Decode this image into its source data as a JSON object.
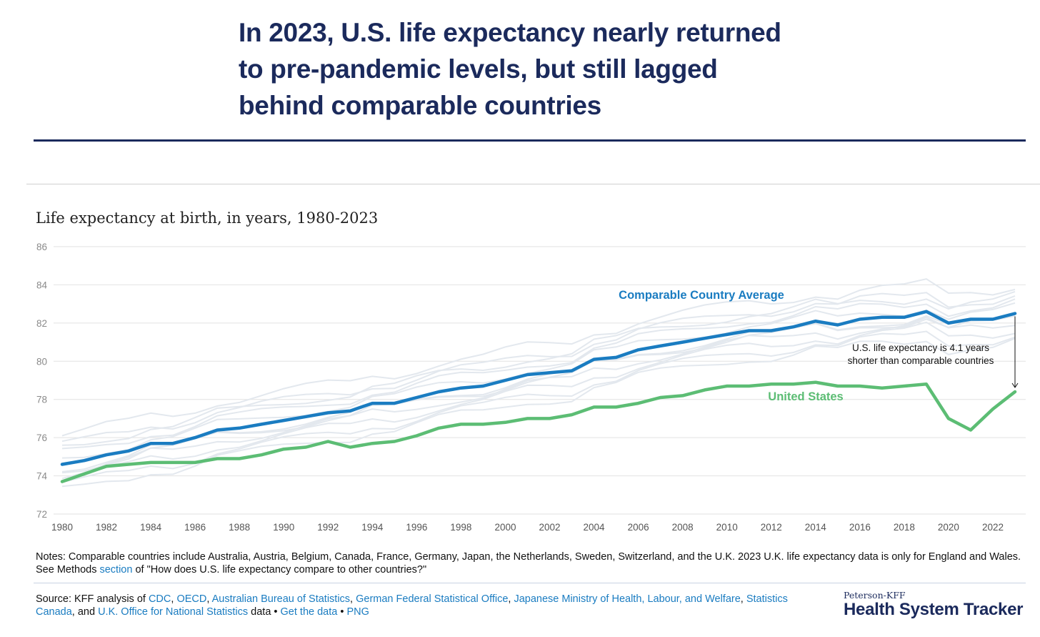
{
  "title": "In 2023, U.S. life expectancy nearly returned to pre-pandemic levels, but still lagged behind comparable countries",
  "title_lines": [
    "In 2023, U.S. life expectancy nearly returned",
    "to pre-pandemic levels, but still lagged",
    "behind comparable countries"
  ],
  "chart_data": {
    "type": "line",
    "title": "Life expectancy at birth, in years, 1980-2023",
    "xlabel": "",
    "ylabel": "",
    "ylim": [
      72,
      86
    ],
    "xlim": [
      1980,
      2023
    ],
    "yticks": [
      72,
      74,
      76,
      78,
      80,
      82,
      84,
      86
    ],
    "xticks": [
      1980,
      1982,
      1984,
      1986,
      1988,
      1990,
      1992,
      1994,
      1996,
      1998,
      2000,
      2002,
      2004,
      2006,
      2008,
      2010,
      2012,
      2014,
      2016,
      2018,
      2020,
      2022
    ],
    "grid": true,
    "series": [
      {
        "name": "Comparable Country Average",
        "color": "#1a7cc1",
        "values": [
          74.6,
          74.8,
          75.1,
          75.3,
          75.7,
          75.7,
          76.0,
          76.4,
          76.5,
          76.7,
          76.9,
          77.1,
          77.3,
          77.4,
          77.8,
          77.8,
          78.1,
          78.4,
          78.6,
          78.7,
          79.0,
          79.3,
          79.4,
          79.5,
          80.1,
          80.2,
          80.6,
          80.8,
          81.0,
          81.2,
          81.4,
          81.6,
          81.6,
          81.8,
          82.1,
          81.9,
          82.2,
          82.3,
          82.3,
          82.6,
          82.0,
          82.2,
          82.2,
          82.5
        ]
      },
      {
        "name": "United States",
        "color": "#5cbd74",
        "values": [
          73.7,
          74.1,
          74.5,
          74.6,
          74.7,
          74.7,
          74.7,
          74.9,
          74.9,
          75.1,
          75.4,
          75.5,
          75.8,
          75.5,
          75.7,
          75.8,
          76.1,
          76.5,
          76.7,
          76.7,
          76.8,
          77.0,
          77.0,
          77.2,
          77.6,
          77.6,
          77.8,
          78.1,
          78.2,
          78.5,
          78.7,
          78.7,
          78.8,
          78.8,
          78.9,
          78.7,
          78.7,
          78.6,
          78.7,
          78.8,
          77.0,
          76.4,
          77.5,
          78.4
        ]
      }
    ],
    "comparable_country_offsets_from_average": [
      1.5,
      1.0,
      0.6,
      0.3,
      -0.2,
      -0.5,
      -0.8,
      -1.1,
      -1.4,
      0.9,
      -0.3
    ],
    "background_color": "#e3e8ee",
    "annotation": [
      "U.S. life expectancy is 4.1 years",
      "shorter than comparable countries"
    ]
  },
  "notes": {
    "prefix": "Notes: Comparable countries include Australia, Austria, Belgium, Canada, France, Germany, Japan, the Netherlands, Sweden, Switzerland, and the U.K. 2023 U.K. life expectancy data is only for England and Wales. See Methods ",
    "link": "section",
    "suffix": " of \"How does U.S. life expectancy compare to other countries?\""
  },
  "source": {
    "prefix": "Source: KFF analysis of ",
    "links": [
      "CDC",
      "OECD",
      "Australian Bureau of Statistics",
      "German Federal Statistical Office",
      "Japanese Ministry of Health, Labour, and Welfare",
      "Statistics Canada",
      "U.K. Office for National Statistics"
    ],
    "data_text": " data • ",
    "get_data": "Get the data",
    "bullet": " • ",
    "png": "PNG",
    "sep1": ", ",
    "and": ", and "
  },
  "logo": {
    "small": "Peterson-KFF",
    "big": "Health System Tracker"
  }
}
